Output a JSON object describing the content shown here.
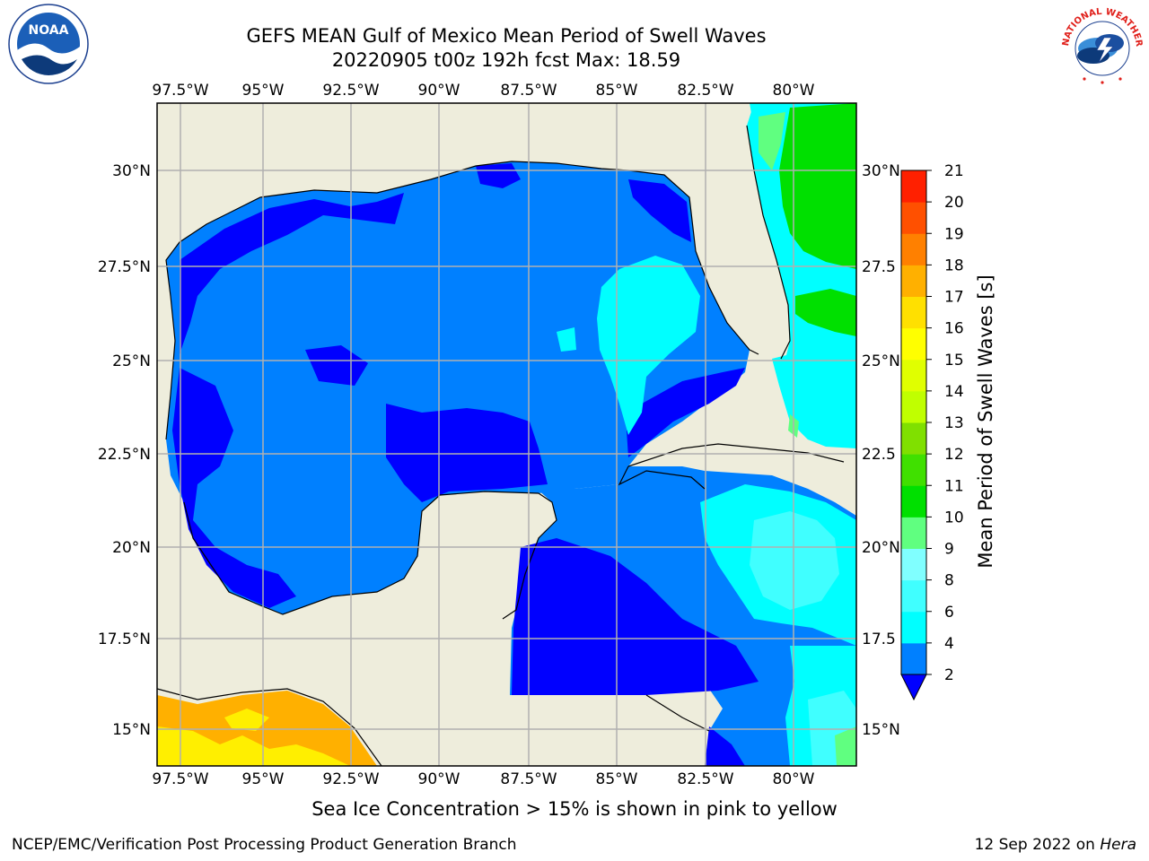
{
  "header": {
    "title_line1": "GEFS MEAN Gulf of Mexico Mean Period of Swell Waves",
    "title_line2": "20220905 t00z 192h fcst   Max: 18.59"
  },
  "map": {
    "lon_labels": [
      "97.5°W",
      "95°W",
      "92.5°W",
      "90°W",
      "87.5°W",
      "85°W",
      "82.5°W",
      "80°W"
    ],
    "lat_labels_left": [
      "30°N",
      "27.5°N",
      "25°N",
      "22.5°N",
      "20°N",
      "17.5°N",
      "15°N"
    ],
    "lat_labels_right": [
      "30°N",
      "27.5",
      "25°N",
      "22.5",
      "20°N",
      "17.5",
      "15°N"
    ],
    "colors": {
      "land": "#eeeddc",
      "no_data": "#ffffff",
      "level_2_4": "#0080ff",
      "level_below_2": "#0000ff",
      "level_4_6": "#00ffff",
      "level_6_8": "#40ffff",
      "level_8_9": "#80ffff",
      "level_9_10": "#60ff80",
      "level_10_11": "#00e000",
      "level_15_16": "#ffef00",
      "level_16_17": "#ffb000",
      "gridline": "#b0b0b0"
    }
  },
  "colorbar": {
    "label": "Mean Period of Swell Waves [s]",
    "ticks": [
      "2",
      "4",
      "6",
      "8",
      "9",
      "10",
      "11",
      "12",
      "13",
      "14",
      "15",
      "16",
      "17",
      "18",
      "19",
      "20",
      "21"
    ],
    "colors": [
      "#0080ff",
      "#00ffff",
      "#40ffff",
      "#80ffff",
      "#60ff80",
      "#00e000",
      "#40e000",
      "#80e000",
      "#c0ff00",
      "#e0ff00",
      "#ffff00",
      "#ffe000",
      "#ffb000",
      "#ff8000",
      "#ff5000",
      "#ff2000"
    ],
    "extend_color": "#0000ff"
  },
  "footer": {
    "subtitle": "Sea Ice Concentration > 15% is shown in pink to yellow",
    "left": "NCEP/EMC/Verification Post Processing Product Generation Branch",
    "right_date": "12 Sep 2022 on ",
    "right_host": "Hera"
  },
  "logos": {
    "noaa": "NOAA",
    "nws_ring": "NATIONAL WEATHER SERVICE"
  }
}
